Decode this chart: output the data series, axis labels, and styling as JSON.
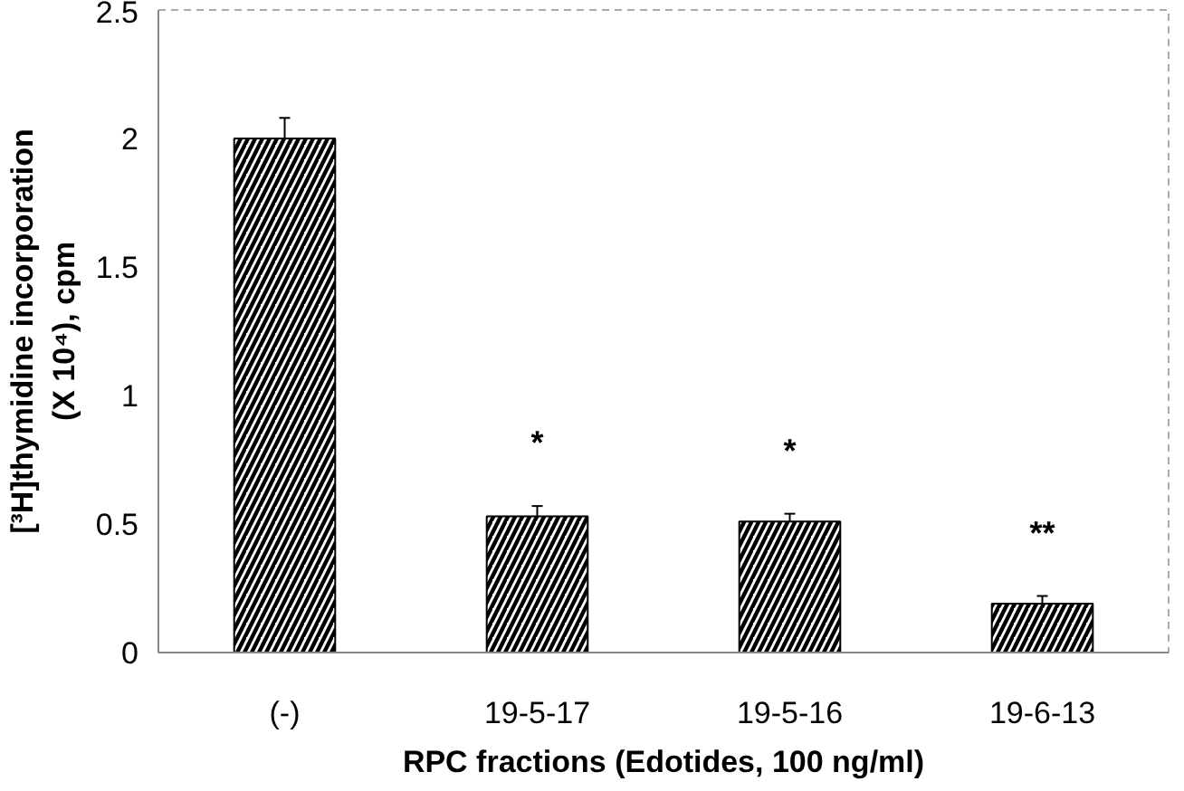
{
  "chart_data": {
    "type": "bar",
    "categories": [
      "(-)",
      "19-5-17",
      "19-5-16",
      "19-6-13"
    ],
    "values": [
      2.0,
      0.53,
      0.51,
      0.19
    ],
    "errors": [
      0.08,
      0.04,
      0.03,
      0.03
    ],
    "color": "#000000",
    "ylim": [
      0,
      2.5
    ],
    "yticks": [
      0,
      0.5,
      1,
      1.5,
      2,
      2.5
    ],
    "xlabel": "RPC fractions (Edotides, 100 ng/ml)",
    "ylabel": "[³H]thymidine incorporation\n(X 10⁴), cpm",
    "annotations": [
      "*",
      "*",
      "**"
    ],
    "grid": false
  }
}
